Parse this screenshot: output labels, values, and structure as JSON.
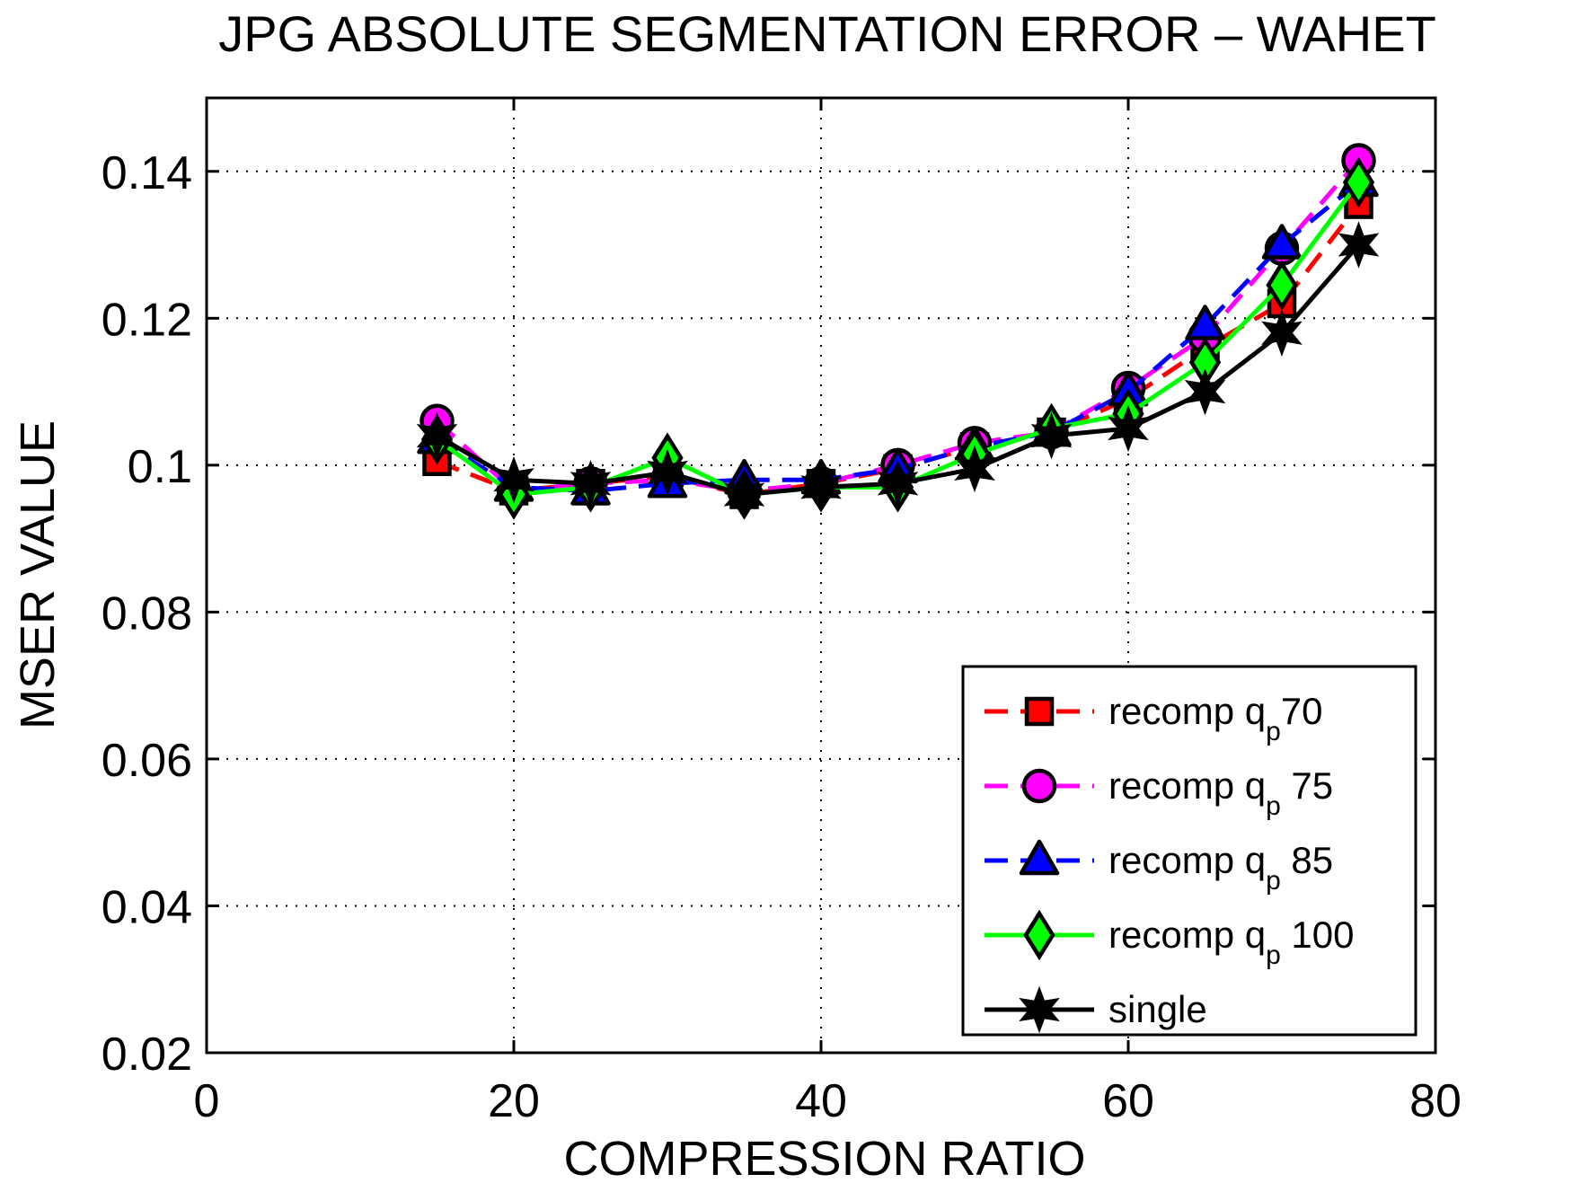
{
  "chart_data": {
    "type": "line",
    "title": "JPG ABSOLUTE SEGMENTATION ERROR – WAHET",
    "xlabel": "COMPRESSION RATIO",
    "ylabel": "MSER VALUE",
    "xlim": [
      0,
      80
    ],
    "ylim": [
      0.02,
      0.15
    ],
    "xticks": [
      0,
      20,
      40,
      60,
      80
    ],
    "xtick_labels": [
      "0",
      "20",
      "40",
      "60",
      "80"
    ],
    "yticks": [
      0.02,
      0.04,
      0.06,
      0.08,
      0.1,
      0.12,
      0.14
    ],
    "ytick_labels": [
      "0.02",
      "0.04",
      "0.06",
      "0.08",
      "0.1",
      "0.12",
      "0.14"
    ],
    "grid": true,
    "legend_position": "bottom-right",
    "x": [
      15,
      20,
      25,
      30,
      35,
      40,
      45,
      50,
      55,
      60,
      65,
      70,
      75
    ],
    "series": [
      {
        "name": "recomp q",
        "sub": "p",
        "suffix": "70",
        "color": "#ff0000",
        "dash": "dashed",
        "marker": "square",
        "values": [
          0.1005,
          0.0965,
          0.0975,
          0.0985,
          0.096,
          0.0975,
          0.0995,
          0.1025,
          0.1045,
          0.109,
          0.116,
          0.122,
          0.1355
        ]
      },
      {
        "name": "recomp q",
        "sub": "p",
        "suffix": " 75",
        "color": "#ff00ff",
        "dash": "dashed",
        "marker": "circle",
        "values": [
          0.106,
          0.0965,
          0.0975,
          0.098,
          0.0965,
          0.0975,
          0.1,
          0.103,
          0.1045,
          0.1105,
          0.1175,
          0.1295,
          0.1415
        ]
      },
      {
        "name": "recomp q",
        "sub": "p",
        "suffix": " 85",
        "color": "#0000ff",
        "dash": "dashed",
        "marker": "triangle",
        "values": [
          0.1035,
          0.097,
          0.0965,
          0.0975,
          0.098,
          0.098,
          0.0995,
          0.1025,
          0.1045,
          0.11,
          0.119,
          0.13,
          0.1385
        ]
      },
      {
        "name": "recomp q",
        "sub": "p",
        "suffix": " 100",
        "color": "#00ff00",
        "dash": "solid",
        "marker": "diamond",
        "values": [
          0.1035,
          0.096,
          0.097,
          0.101,
          0.096,
          0.097,
          0.097,
          0.1015,
          0.105,
          0.107,
          0.114,
          0.1245,
          0.1385
        ]
      },
      {
        "name": "single",
        "sub": "",
        "suffix": "",
        "color": "#000000",
        "dash": "solid",
        "marker": "star",
        "values": [
          0.104,
          0.098,
          0.0975,
          0.099,
          0.096,
          0.097,
          0.0975,
          0.0995,
          0.104,
          0.105,
          0.11,
          0.118,
          0.13
        ]
      }
    ]
  }
}
